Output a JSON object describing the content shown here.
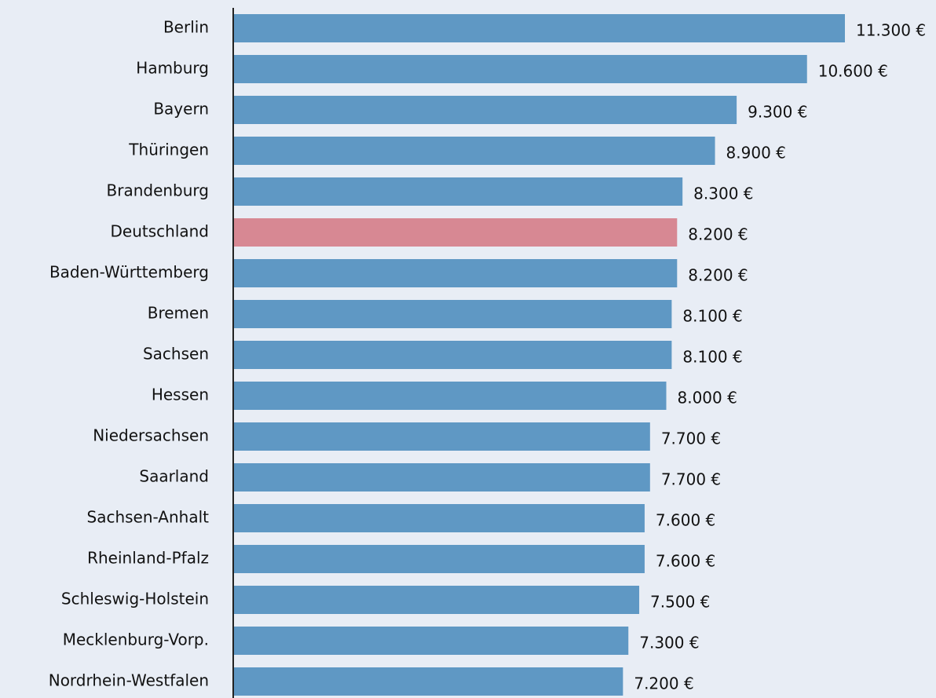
{
  "chart_data": {
    "type": "bar",
    "categories": [
      "Berlin",
      "Hamburg",
      "Bayern",
      "Thüringen",
      "Brandenburg",
      "Deutschland",
      "Baden-Württemberg",
      "Bremen",
      "Sachsen",
      "Hessen",
      "Niedersachsen",
      "Saarland",
      "Sachsen-Anhalt",
      "Rheinland-Pfalz",
      "Schleswig-Holstein",
      "Mecklenburg-Vorp.",
      "Nordrhein-Westfalen"
    ],
    "values": [
      11300,
      10600,
      9300,
      8900,
      8300,
      8200,
      8200,
      8100,
      8100,
      8000,
      7700,
      7700,
      7600,
      7600,
      7500,
      7300,
      7200
    ],
    "value_labels": [
      "11.300 €",
      "10.600 €",
      "9.300 €",
      "8.900 €",
      "8.300 €",
      "8.200 €",
      "8.200 €",
      "8.100 €",
      "8.100 €",
      "8.000 €",
      "7.700 €",
      "7.700 €",
      "7.600 €",
      "7.600 €",
      "7.500 €",
      "7.300 €",
      "7.200 €"
    ],
    "colors": [
      "#5f98c4",
      "#5f98c4",
      "#5f98c4",
      "#5f98c4",
      "#5f98c4",
      "#d78893",
      "#5f98c4",
      "#5f98c4",
      "#5f98c4",
      "#5f98c4",
      "#5f98c4",
      "#5f98c4",
      "#5f98c4",
      "#5f98c4",
      "#5f98c4",
      "#5f98c4",
      "#5f98c4"
    ]
  }
}
